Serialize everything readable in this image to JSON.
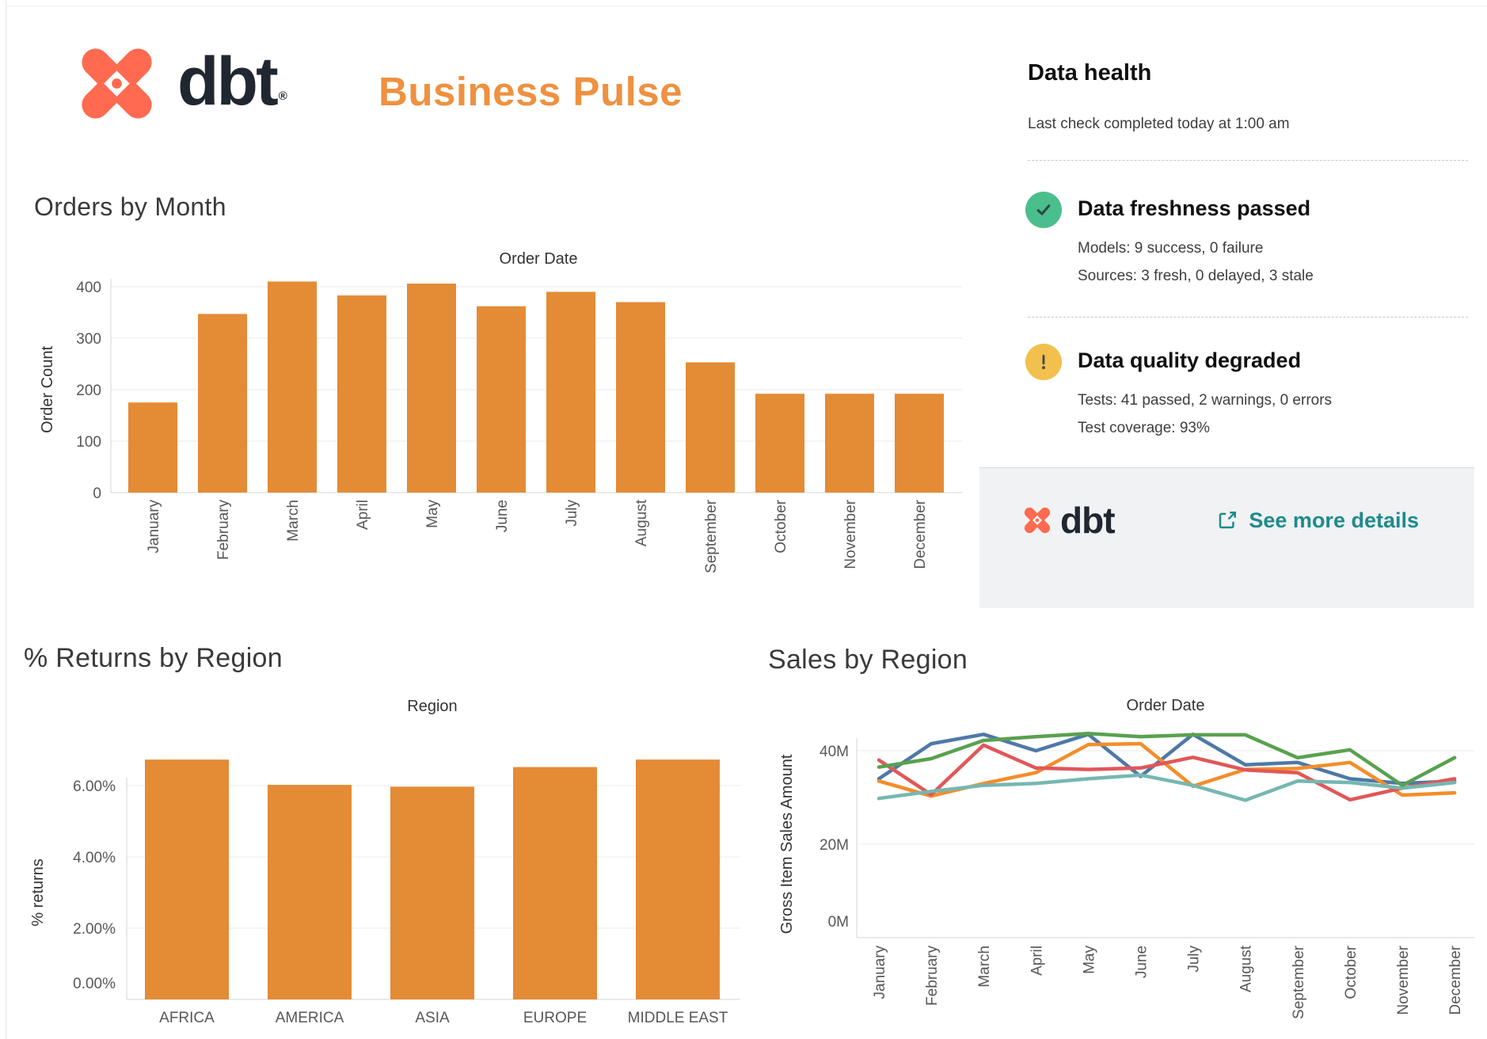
{
  "header": {
    "logo_text": "dbt",
    "trademark": "®",
    "title": "Business Pulse"
  },
  "data_health": {
    "title": "Data health",
    "subtitle": "Last check completed today at 1:00 am",
    "items": [
      {
        "status": "passed",
        "icon": "check-circle",
        "title": "Data freshness passed",
        "lines": [
          "Models: 9 success, 0 failure",
          "Sources: 3 fresh, 0 delayed, 3 stale"
        ]
      },
      {
        "status": "warning",
        "icon": "exclamation-circle",
        "title": "Data quality degraded",
        "lines": [
          "Tests: 41 passed, 2 warnings, 0 errors",
          "Test coverage: 93%"
        ]
      }
    ],
    "footer": {
      "logo_text": "dbt",
      "link_label": "See more details",
      "link_icon": "external-link-icon"
    }
  },
  "colors": {
    "accent_orange": "#EE9140",
    "bar_orange": "#E48B36",
    "dbt_coral": "#FF6A50",
    "navy": "#212730",
    "teal_link": "#1F8A8D",
    "green_status": "#4BBE8D",
    "yellow_status": "#F2C04D"
  },
  "chart_data": [
    {
      "id": "orders",
      "type": "bar",
      "title": "Orders by Month",
      "column_header": "Order Date",
      "xlabel": "",
      "ylabel": "Order Count",
      "yticks": [
        0,
        100,
        200,
        300,
        400
      ],
      "ylim": [
        0,
        440
      ],
      "grid": true,
      "legend_position": "none",
      "bar_color": "#E48B36",
      "categories": [
        "January",
        "February",
        "March",
        "April",
        "May",
        "June",
        "July",
        "August",
        "September",
        "October",
        "November",
        "December"
      ],
      "values": [
        175,
        347,
        410,
        383,
        406,
        362,
        390,
        370,
        253,
        192,
        192,
        192
      ]
    },
    {
      "id": "returns",
      "type": "bar",
      "title": "% Returns by Region",
      "column_header": "Region",
      "xlabel": "",
      "ylabel": "% returns",
      "ytick_labels": [
        "0.00%",
        "2.00%",
        "4.00%",
        "6.00%"
      ],
      "yticks": [
        0,
        2,
        4,
        6
      ],
      "ylim": [
        0,
        7.2
      ],
      "grid": true,
      "legend_position": "none",
      "bar_color": "#E48B36",
      "categories": [
        "AFRICA",
        "AMERICA",
        "ASIA",
        "EUROPE",
        "MIDDLE EAST"
      ],
      "values": [
        6.73,
        6.02,
        5.97,
        6.52,
        6.73
      ]
    },
    {
      "id": "sales",
      "type": "line",
      "title": "Sales by Region",
      "column_header": "Order Date",
      "xlabel": "",
      "ylabel": "Gross Item Sales Amount",
      "ytick_labels": [
        "0M",
        "20M",
        "40M"
      ],
      "yticks": [
        0,
        20,
        40
      ],
      "ylim": [
        0,
        46
      ],
      "unit": "millions",
      "grid": true,
      "legend_position": "none",
      "x": [
        "January",
        "February",
        "March",
        "April",
        "May",
        "June",
        "July",
        "August",
        "September",
        "October",
        "November",
        "December"
      ],
      "series": [
        {
          "name": "series-blue",
          "color": "#4E79A7",
          "values": [
            34.0,
            41.5,
            43.5,
            40.0,
            43.5,
            34.5,
            43.5,
            37.0,
            37.5,
            34.0,
            33.0,
            33.5
          ]
        },
        {
          "name": "series-orange",
          "color": "#F28E2B",
          "values": [
            33.5,
            30.3,
            33.0,
            35.3,
            41.3,
            41.5,
            32.4,
            36.0,
            36.2,
            37.5,
            30.5,
            31.0
          ]
        },
        {
          "name": "series-red",
          "color": "#E15759",
          "values": [
            38.0,
            30.6,
            41.2,
            36.3,
            36.0,
            36.3,
            38.6,
            35.9,
            35.3,
            29.5,
            32.0,
            34.0
          ]
        },
        {
          "name": "series-teal",
          "color": "#76B7B2",
          "values": [
            29.8,
            31.3,
            32.6,
            33.0,
            34.0,
            34.8,
            32.6,
            29.4,
            33.5,
            33.2,
            32.0,
            33.2
          ]
        },
        {
          "name": "series-green",
          "color": "#59A14F",
          "values": [
            36.5,
            38.3,
            42.2,
            43.0,
            43.7,
            43.0,
            43.4,
            43.4,
            38.5,
            40.2,
            32.6,
            38.5
          ]
        }
      ]
    }
  ]
}
